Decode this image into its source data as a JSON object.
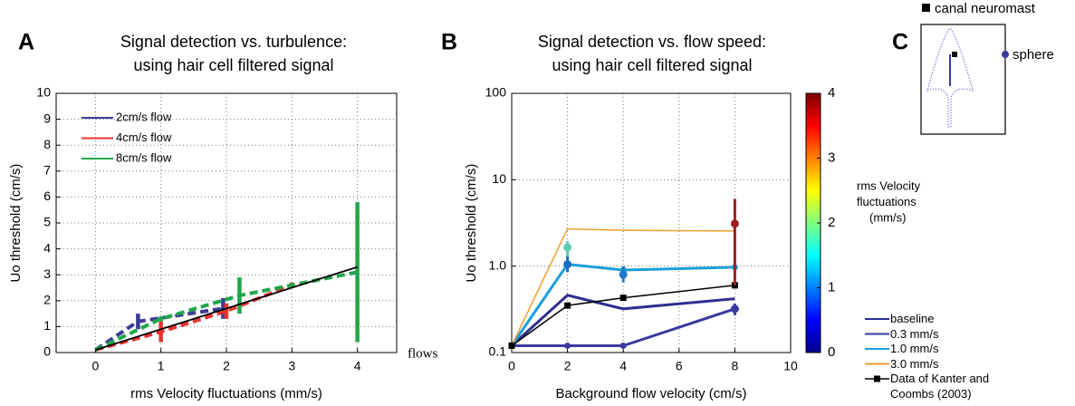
{
  "chart_data": [
    {
      "type": "line",
      "panel_label": "A",
      "title": [
        "Signal detection vs. turbulence:",
        "using hair cell filtered signal"
      ],
      "xlabel": "rms Velocity fluctuations (mm/s)",
      "ylabel": "Uo threshold (cm/s)",
      "xlim": [
        -0.6,
        4.6
      ],
      "ylim": [
        0,
        10
      ],
      "xticks": [
        0,
        1,
        2,
        3,
        4
      ],
      "yticks": [
        0,
        1,
        2,
        3,
        4,
        5,
        6,
        7,
        8,
        9,
        10
      ],
      "grid": true,
      "legend": "upper-left",
      "annotation": "flows",
      "series": [
        {
          "name": "2cm/s flow",
          "color": "#3b3c94",
          "x": [
            0,
            0.65,
            1.95
          ],
          "values": [
            0.1,
            1.2,
            1.7
          ],
          "errors": [
            0,
            0.3,
            0.4
          ],
          "dashed": true
        },
        {
          "name": "4cm/s flow",
          "color": "#e8332e",
          "x": [
            0,
            1,
            2,
            3
          ],
          "values": [
            0.1,
            0.8,
            1.6,
            2.6
          ],
          "errors": [
            0,
            0.4,
            0.3,
            0.1
          ],
          "dashed": true
        },
        {
          "name": "8cm/s flow",
          "color": "#1fa64a",
          "x": [
            0,
            1,
            2.2,
            4
          ],
          "values": [
            0.1,
            1.3,
            2.2,
            3.1
          ],
          "errors": [
            0,
            0.1,
            0.7,
            2.7
          ],
          "dashed": true
        },
        {
          "color": "#000000",
          "x": [
            0,
            4
          ],
          "values": [
            0.1,
            3.3
          ]
        }
      ]
    },
    {
      "type": "line",
      "panel_label": "B",
      "title": [
        "Signal detection vs. flow speed:",
        "using hair cell filtered signal"
      ],
      "xlabel": "Background flow velocity (cm/s)",
      "ylabel": "Uo threshold (cm/s)",
      "xlim": [
        0,
        10
      ],
      "ylim": [
        0.1,
        100
      ],
      "log_y": true,
      "xticks": [
        0,
        2,
        4,
        6,
        8,
        10
      ],
      "yticks": [
        0.1,
        {
          "value": 1,
          "label": "1.0"
        },
        10,
        100
      ],
      "grid": true,
      "legend": "right-outside",
      "series": [
        {
          "name": "baseline",
          "color": "#2e2f8e",
          "x": [
            0,
            2,
            4,
            8
          ],
          "values": [
            0.12,
            0.46,
            0.32,
            0.42
          ]
        },
        {
          "name": "0.3 mm/s",
          "color": "#3a3aa0",
          "x": [
            0,
            2,
            4,
            8
          ],
          "values": [
            0.12,
            0.12,
            0.12,
            0.32
          ],
          "marker": "circle"
        },
        {
          "name": "1.0 mm/s",
          "color": "#1aa0dc",
          "x": [
            0,
            2,
            4,
            8
          ],
          "values": [
            0.12,
            1.05,
            0.9,
            0.97
          ],
          "marker": "circle"
        },
        {
          "name": "3.0 mm/s",
          "color": "#f0a030",
          "x": [
            0,
            2,
            4,
            8
          ],
          "values": [
            0.12,
            2.7,
            2.6,
            2.55
          ]
        },
        {
          "name": "Data of Kanter and Coombs (2003)",
          "color": "#000000",
          "x": [
            0,
            2,
            4,
            8
          ],
          "values": [
            0.12,
            0.35,
            0.43,
            0.6
          ],
          "marker": "square"
        }
      ],
      "points": {
        "x": [
          2,
          2,
          4,
          8,
          8
        ],
        "values": [
          1.65,
          1.05,
          0.8,
          3.1,
          0.32
        ],
        "lower": [
          1.3,
          0.85,
          0.65,
          0.6,
          0.27
        ],
        "upper": [
          1.95,
          1.3,
          1.0,
          6.0,
          0.37
        ],
        "colors": [
          "#5fc9b0",
          "#1a70c0",
          "#1a7ac8",
          "#a01e1e",
          "#3a3aa0"
        ]
      },
      "colorbar": {
        "ylim": [
          0,
          4
        ],
        "ticks": [
          0,
          1,
          2,
          3,
          4
        ],
        "label": [
          "rms Velocity",
          "fluctuations",
          "(mm/s)"
        ]
      }
    }
  ],
  "diagram": {
    "panel_label": "C",
    "labels": [
      "canal neuromast",
      "sphere"
    ]
  }
}
